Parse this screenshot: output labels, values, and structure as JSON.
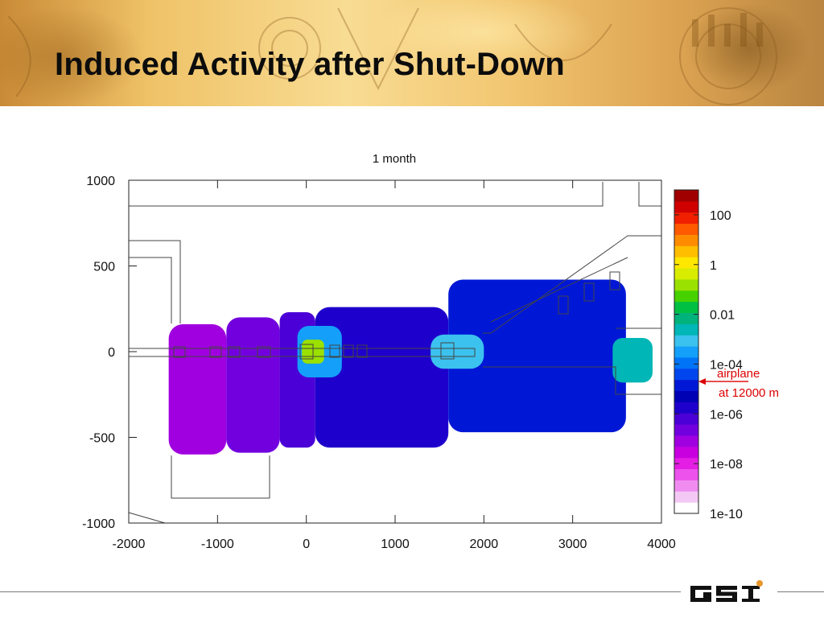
{
  "slide": {
    "title": "Induced Activity after Shut-Down"
  },
  "logo": {
    "name": "GSI",
    "colors": {
      "mark": "#111111",
      "dot": "#e8962b"
    }
  },
  "chart_data": {
    "type": "heatmap",
    "title": "1 month",
    "xlabel": "",
    "ylabel": "",
    "xlim": [
      -2000,
      4000
    ],
    "ylim": [
      -1000,
      1000
    ],
    "x_ticks": [
      "-2000",
      "-1000",
      "0",
      "1000",
      "2000",
      "3000",
      "4000"
    ],
    "y_ticks": [
      "1000",
      "500",
      "0",
      "-500",
      "-1000"
    ],
    "colorbar": {
      "scale": "log",
      "range": [
        1e-10,
        1000
      ],
      "ticks": [
        "100",
        "1",
        "0.01",
        "1e-04",
        "1e-06",
        "1e-08",
        "1e-10"
      ],
      "colors": [
        "#ffffff",
        "#f4c8f4",
        "#f08cf0",
        "#ec52ec",
        "#e41ee4",
        "#c800e0",
        "#a000e0",
        "#7200de",
        "#4a00d6",
        "#1e00cc",
        "#0000b4",
        "#0018d6",
        "#0046ee",
        "#0074f6",
        "#14a0fa",
        "#3cc2ee",
        "#00b6b6",
        "#00b27c",
        "#00c044",
        "#46d200",
        "#9ae000",
        "#d8ec00",
        "#ffe800",
        "#ffbe00",
        "#ff8c00",
        "#ff5a00",
        "#f02000",
        "#d00000",
        "#a00000"
      ]
    },
    "regions": [
      {
        "x": [
          -1550,
          -900
        ],
        "y": [
          -600,
          160
        ],
        "level": "1e-07"
      },
      {
        "x": [
          -900,
          -300
        ],
        "y": [
          -590,
          200
        ],
        "level": "3e-07"
      },
      {
        "x": [
          -300,
          100
        ],
        "y": [
          -560,
          230
        ],
        "level": "1e-06"
      },
      {
        "x": [
          100,
          1600
        ],
        "y": [
          -560,
          260
        ],
        "level": "3e-06"
      },
      {
        "x": [
          1600,
          3600
        ],
        "y": [
          -470,
          420
        ],
        "level": "1e-05"
      },
      {
        "x": [
          -100,
          400
        ],
        "y": [
          -150,
          150
        ],
        "level": "3e-04"
      },
      {
        "x": [
          1400,
          2000
        ],
        "y": [
          -100,
          100
        ],
        "level": "1e-03"
      },
      {
        "x": [
          3450,
          3900
        ],
        "y": [
          -180,
          80
        ],
        "level": "3e-03"
      },
      {
        "x": [
          -50,
          200
        ],
        "y": [
          -70,
          70
        ],
        "level": "0.1"
      }
    ],
    "annotations": [
      {
        "text": "airplane",
        "line2": "at 12000 m",
        "color": "#dd0000",
        "level": "2e-05"
      }
    ]
  }
}
